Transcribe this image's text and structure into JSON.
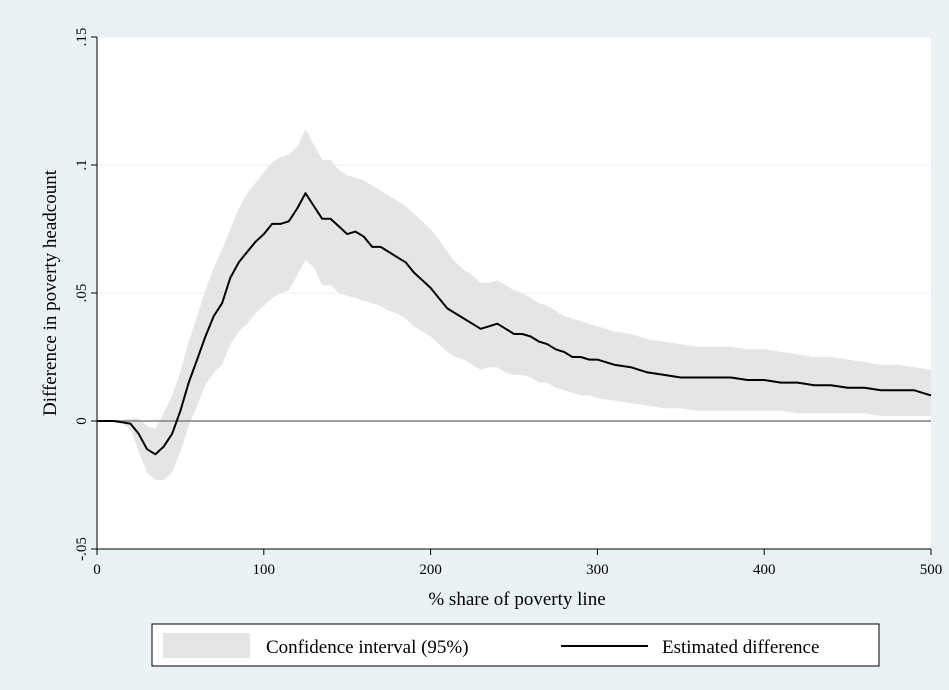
{
  "chart_data": {
    "type": "area",
    "xlabel": "% share of poverty line",
    "ylabel": "Difference in poverty headcount",
    "xlim": [
      0,
      500
    ],
    "ylim": [
      -0.05,
      0.15
    ],
    "x_ticks": [
      0,
      100,
      200,
      300,
      400,
      500
    ],
    "x_tick_labels": [
      "0",
      "100",
      "200",
      "300",
      "400",
      "500"
    ],
    "y_ticks": [
      -0.05,
      0,
      0.05,
      0.1,
      0.15
    ],
    "y_tick_labels": [
      "-.05",
      "0",
      ".05",
      ".1",
      ".15"
    ],
    "grid": "horizontal",
    "reference_line_y": 0,
    "legend_position": "bottom",
    "legend": [
      "Confidence interval (95%)",
      "Estimated difference"
    ],
    "colors": {
      "background": "#eaf2f3",
      "plot_background": "#ffffff",
      "band": "#e5e5e5",
      "line": "#000000",
      "reference_line": "#808080",
      "grid": "#eaf2f3"
    },
    "series": [
      {
        "name": "Estimated difference",
        "kind": "line",
        "x": [
          0,
          10,
          15,
          20,
          25,
          30,
          35,
          40,
          45,
          50,
          55,
          60,
          65,
          70,
          75,
          80,
          85,
          90,
          95,
          100,
          105,
          110,
          115,
          120,
          125,
          130,
          135,
          140,
          145,
          150,
          155,
          160,
          165,
          170,
          175,
          180,
          185,
          190,
          195,
          200,
          205,
          210,
          215,
          220,
          225,
          230,
          235,
          240,
          245,
          250,
          255,
          260,
          265,
          270,
          275,
          280,
          285,
          290,
          295,
          300,
          310,
          320,
          330,
          340,
          350,
          360,
          370,
          380,
          390,
          400,
          410,
          420,
          430,
          440,
          450,
          460,
          470,
          480,
          490,
          500
        ],
        "values": [
          0,
          0,
          -0.0005,
          -0.001,
          -0.005,
          -0.011,
          -0.013,
          -0.01,
          -0.005,
          0.004,
          0.015,
          0.024,
          0.033,
          0.041,
          0.046,
          0.056,
          0.062,
          0.066,
          0.07,
          0.073,
          0.077,
          0.077,
          0.078,
          0.083,
          0.089,
          0.084,
          0.079,
          0.079,
          0.076,
          0.073,
          0.074,
          0.072,
          0.068,
          0.068,
          0.066,
          0.064,
          0.062,
          0.058,
          0.055,
          0.052,
          0.048,
          0.044,
          0.042,
          0.04,
          0.038,
          0.036,
          0.037,
          0.038,
          0.036,
          0.034,
          0.034,
          0.033,
          0.031,
          0.03,
          0.028,
          0.027,
          0.025,
          0.025,
          0.024,
          0.024,
          0.022,
          0.021,
          0.019,
          0.018,
          0.017,
          0.017,
          0.017,
          0.017,
          0.016,
          0.016,
          0.015,
          0.015,
          0.014,
          0.014,
          0.013,
          0.013,
          0.012,
          0.012,
          0.012,
          0.01
        ]
      },
      {
        "name": "Confidence interval (95%)",
        "kind": "band",
        "x": [
          0,
          10,
          15,
          20,
          25,
          30,
          35,
          40,
          45,
          50,
          55,
          60,
          65,
          70,
          75,
          80,
          85,
          90,
          95,
          100,
          105,
          110,
          115,
          120,
          125,
          130,
          135,
          140,
          145,
          150,
          155,
          160,
          165,
          170,
          175,
          180,
          185,
          190,
          195,
          200,
          205,
          210,
          215,
          220,
          225,
          230,
          235,
          240,
          245,
          250,
          255,
          260,
          265,
          270,
          275,
          280,
          285,
          290,
          295,
          300,
          310,
          320,
          330,
          340,
          350,
          360,
          370,
          380,
          390,
          400,
          410,
          420,
          430,
          440,
          450,
          460,
          470,
          480,
          490,
          500
        ],
        "lower": [
          0,
          0,
          -0.001,
          -0.003,
          -0.012,
          -0.02,
          -0.023,
          -0.023,
          -0.02,
          -0.012,
          -0.002,
          0.006,
          0.014,
          0.019,
          0.022,
          0.03,
          0.035,
          0.038,
          0.042,
          0.045,
          0.048,
          0.05,
          0.051,
          0.057,
          0.063,
          0.06,
          0.053,
          0.053,
          0.05,
          0.049,
          0.048,
          0.047,
          0.046,
          0.045,
          0.043,
          0.042,
          0.04,
          0.037,
          0.035,
          0.033,
          0.03,
          0.027,
          0.025,
          0.024,
          0.022,
          0.02,
          0.021,
          0.021,
          0.019,
          0.018,
          0.018,
          0.017,
          0.015,
          0.015,
          0.013,
          0.012,
          0.011,
          0.01,
          0.01,
          0.009,
          0.008,
          0.007,
          0.006,
          0.005,
          0.005,
          0.004,
          0.004,
          0.004,
          0.004,
          0.004,
          0.004,
          0.003,
          0.003,
          0.003,
          0.003,
          0.003,
          0.002,
          0.002,
          0.002,
          0.002
        ],
        "upper": [
          0,
          0,
          0.0002,
          0.001,
          0.001,
          -0.002,
          -0.003,
          0.003,
          0.01,
          0.019,
          0.031,
          0.041,
          0.051,
          0.06,
          0.067,
          0.075,
          0.083,
          0.089,
          0.093,
          0.097,
          0.101,
          0.103,
          0.104,
          0.107,
          0.114,
          0.108,
          0.102,
          0.102,
          0.098,
          0.096,
          0.095,
          0.094,
          0.092,
          0.09,
          0.088,
          0.086,
          0.084,
          0.081,
          0.078,
          0.075,
          0.071,
          0.066,
          0.062,
          0.059,
          0.057,
          0.054,
          0.054,
          0.055,
          0.053,
          0.051,
          0.05,
          0.048,
          0.046,
          0.045,
          0.043,
          0.041,
          0.04,
          0.039,
          0.038,
          0.037,
          0.035,
          0.034,
          0.032,
          0.031,
          0.03,
          0.029,
          0.029,
          0.029,
          0.028,
          0.028,
          0.027,
          0.026,
          0.025,
          0.025,
          0.024,
          0.023,
          0.022,
          0.022,
          0.021,
          0.02
        ]
      }
    ]
  }
}
